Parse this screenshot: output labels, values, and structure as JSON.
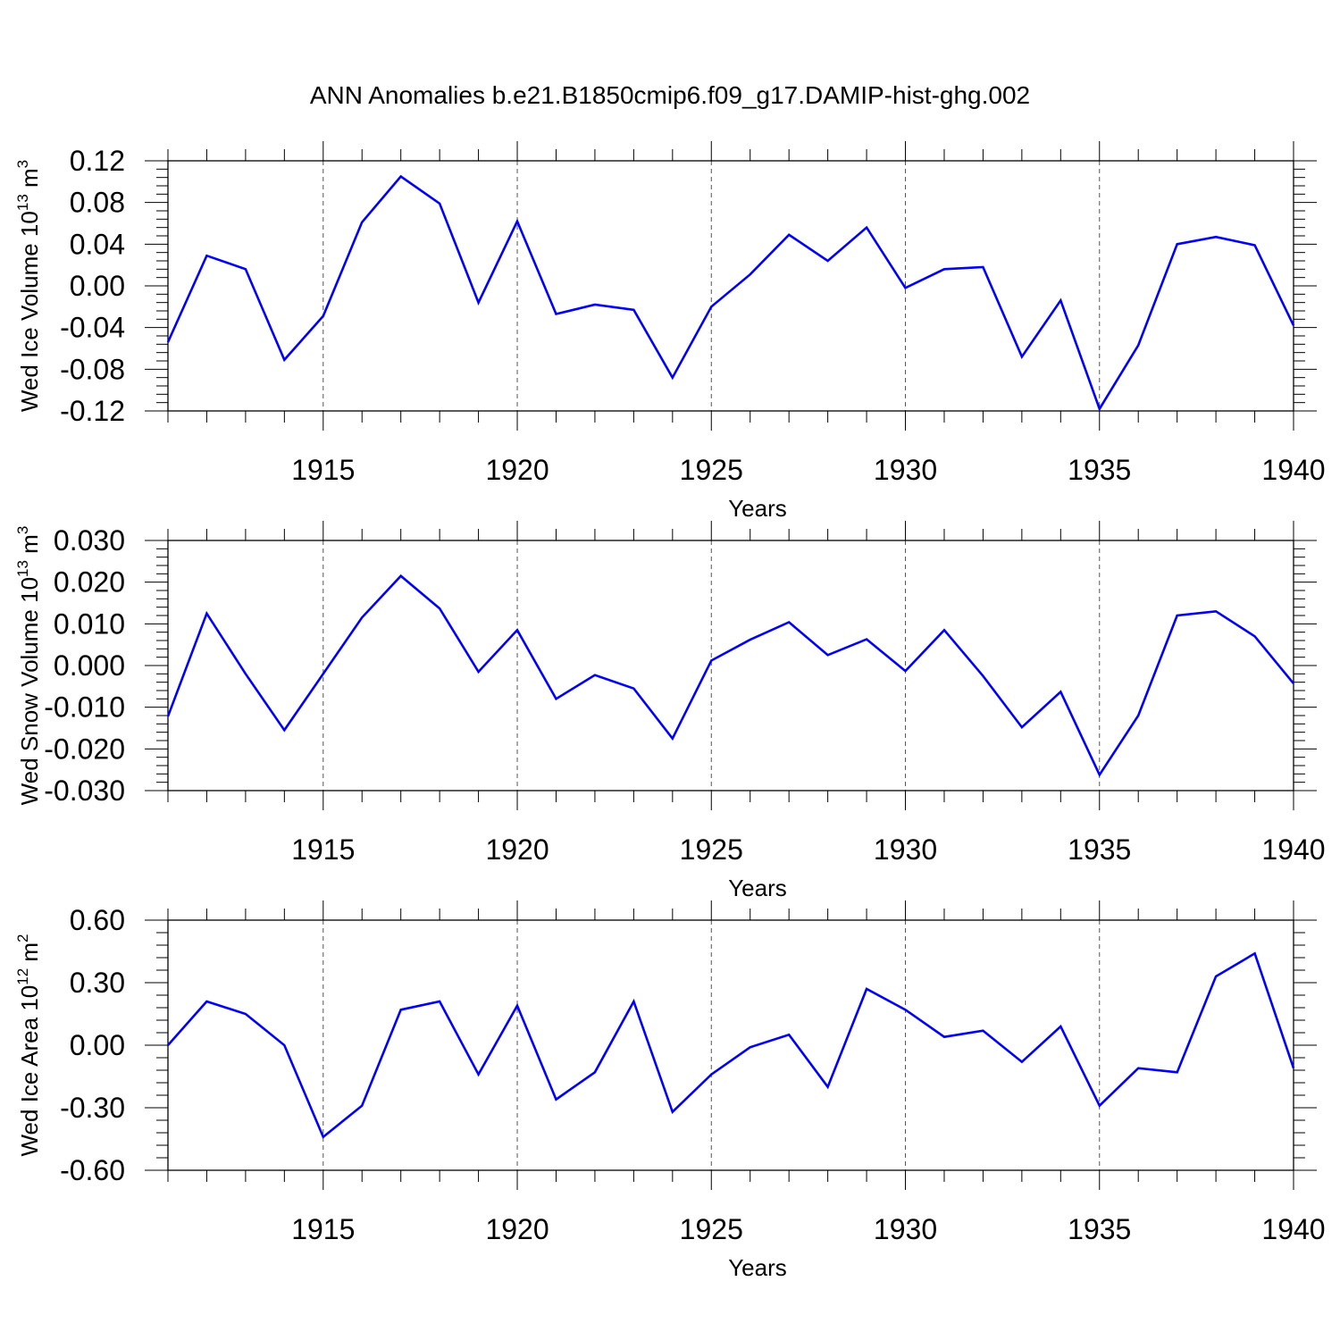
{
  "title": "ANN Anomalies b.e21.B1850cmip6.f09_g17.DAMIP-hist-ghg.002",
  "line_color": "#0000ff",
  "chart_data": [
    {
      "type": "line",
      "ylabel": {
        "prefix": "Wed Ice Volume 10",
        "exp": "13",
        "unit": " m",
        "unit_exp": "3"
      },
      "xlabel": "Years",
      "xlim": [
        1911,
        1940
      ],
      "ylim": [
        -0.12,
        0.12
      ],
      "yticks": [
        -0.12,
        -0.08,
        -0.04,
        0.0,
        0.04,
        0.08,
        0.12
      ],
      "ytick_labels": [
        "-0.12",
        "-0.08",
        "-0.04",
        "0.00",
        "0.04",
        "0.08",
        "0.12"
      ],
      "xticks": [
        1915,
        1920,
        1925,
        1930,
        1935,
        1940
      ],
      "xtick_labels": [
        "1915",
        "1920",
        "1925",
        "1930",
        "1935",
        "1940"
      ],
      "grid": "vertical dashed at major x ticks",
      "x": [
        1911,
        1912,
        1913,
        1914,
        1915,
        1916,
        1917,
        1918,
        1919,
        1920,
        1921,
        1922,
        1923,
        1924,
        1925,
        1926,
        1927,
        1928,
        1929,
        1930,
        1931,
        1932,
        1933,
        1934,
        1935,
        1936,
        1937,
        1938,
        1939,
        1940
      ],
      "series": [
        {
          "values": [
            -0.054,
            0.029,
            0.016,
            -0.071,
            -0.029,
            0.061,
            0.105,
            0.079,
            -0.016,
            0.062,
            -0.027,
            -0.018,
            -0.023,
            -0.088,
            -0.02,
            0.011,
            0.049,
            0.024,
            0.056,
            -0.002,
            0.016,
            0.018,
            -0.068,
            -0.014,
            -0.118,
            -0.057,
            0.04,
            0.047,
            0.039,
            -0.038
          ]
        }
      ]
    },
    {
      "type": "line",
      "ylabel": {
        "prefix": "Wed Snow Volume 10",
        "exp": "13",
        "unit": " m",
        "unit_exp": "3"
      },
      "xlabel": "Years",
      "xlim": [
        1911,
        1940
      ],
      "ylim": [
        -0.03,
        0.03
      ],
      "yticks": [
        -0.03,
        -0.02,
        -0.01,
        0.0,
        0.01,
        0.02,
        0.03
      ],
      "ytick_labels": [
        "-0.030",
        "-0.020",
        "-0.010",
        "0.000",
        "0.010",
        "0.020",
        "0.030"
      ],
      "xticks": [
        1915,
        1920,
        1925,
        1930,
        1935,
        1940
      ],
      "xtick_labels": [
        "1915",
        "1920",
        "1925",
        "1930",
        "1935",
        "1940"
      ],
      "grid": "vertical dashed at major x ticks",
      "x": [
        1911,
        1912,
        1913,
        1914,
        1915,
        1916,
        1917,
        1918,
        1919,
        1920,
        1921,
        1922,
        1923,
        1924,
        1925,
        1926,
        1927,
        1928,
        1929,
        1930,
        1931,
        1932,
        1933,
        1934,
        1935,
        1936,
        1937,
        1938,
        1939,
        1940
      ],
      "series": [
        {
          "values": [
            -0.0122,
            0.0125,
            -0.002,
            -0.0155,
            -0.002,
            0.0115,
            0.0215,
            0.0137,
            -0.0015,
            0.0085,
            -0.008,
            -0.0023,
            -0.0055,
            -0.0175,
            0.0012,
            0.0062,
            0.0104,
            0.0025,
            0.0063,
            -0.0013,
            0.0085,
            -0.0025,
            -0.0148,
            -0.0063,
            -0.0262,
            -0.012,
            0.012,
            0.013,
            0.007,
            -0.0043
          ]
        }
      ]
    },
    {
      "type": "line",
      "ylabel": {
        "prefix": "Wed Ice Area 10",
        "exp": "12",
        "unit": " m",
        "unit_exp": "2"
      },
      "xlabel": "Years",
      "xlim": [
        1911,
        1940
      ],
      "ylim": [
        -0.6,
        0.6
      ],
      "yticks": [
        -0.6,
        -0.3,
        0.0,
        0.3,
        0.6
      ],
      "ytick_labels": [
        "-0.60",
        "-0.30",
        "0.00",
        "0.30",
        "0.60"
      ],
      "xticks": [
        1915,
        1920,
        1925,
        1930,
        1935,
        1940
      ],
      "xtick_labels": [
        "1915",
        "1920",
        "1925",
        "1930",
        "1935",
        "1940"
      ],
      "grid": "vertical dashed at major x ticks",
      "x": [
        1911,
        1912,
        1913,
        1914,
        1915,
        1916,
        1917,
        1918,
        1919,
        1920,
        1921,
        1922,
        1923,
        1924,
        1925,
        1926,
        1927,
        1928,
        1929,
        1930,
        1931,
        1932,
        1933,
        1934,
        1935,
        1936,
        1937,
        1938,
        1939,
        1940
      ],
      "series": [
        {
          "values": [
            0.0,
            0.21,
            0.15,
            0.0,
            -0.44,
            -0.29,
            0.17,
            0.21,
            -0.14,
            0.19,
            -0.26,
            -0.13,
            0.21,
            -0.32,
            -0.14,
            -0.01,
            0.05,
            -0.2,
            0.27,
            0.17,
            0.04,
            0.07,
            -0.08,
            0.09,
            -0.29,
            -0.11,
            -0.13,
            0.33,
            0.44,
            -0.11
          ]
        }
      ]
    }
  ]
}
